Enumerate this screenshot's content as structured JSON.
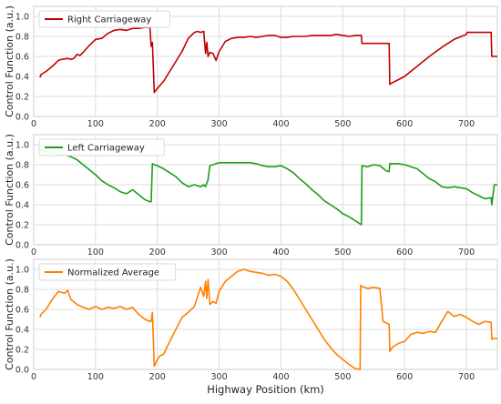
{
  "chart_data": {
    "type": "line",
    "xlabel": "Highway Position (km)",
    "shared_x_ticks": [
      0,
      100,
      200,
      300,
      400,
      500,
      600,
      700
    ],
    "xlim": [
      0,
      750
    ],
    "grid": true,
    "legend_position": "top-left",
    "panels": [
      {
        "ylabel": "Control Function (a.u.)",
        "ylim": [
          0,
          1.1
        ],
        "yticks": [
          0.0,
          0.2,
          0.4,
          0.6,
          0.8,
          1.0
        ],
        "series": [
          {
            "name": "Right Carriageway",
            "color": "#c00000",
            "x": [
              10,
              12,
              20,
              30,
              40,
              45,
              55,
              60,
              65,
              70,
              75,
              80,
              90,
              100,
              110,
              120,
              130,
              140,
              150,
              160,
              170,
              180,
              188,
              190,
              192,
              195,
              200,
              210,
              220,
              230,
              240,
              250,
              260,
              265,
              270,
              275,
              278,
              280,
              282,
              285,
              290,
              295,
              300,
              310,
              320,
              330,
              340,
              350,
              360,
              370,
              380,
              390,
              400,
              410,
              420,
              430,
              440,
              450,
              460,
              470,
              480,
              490,
              500,
              510,
              520,
              530,
              531,
              560,
              575,
              576,
              578,
              600,
              620,
              640,
              660,
              680,
              700,
              701,
              730,
              740,
              741,
              750
            ],
            "y": [
              0.39,
              0.42,
              0.45,
              0.5,
              0.56,
              0.57,
              0.58,
              0.57,
              0.58,
              0.62,
              0.61,
              0.64,
              0.71,
              0.77,
              0.78,
              0.83,
              0.86,
              0.87,
              0.86,
              0.88,
              0.88,
              0.89,
              0.89,
              0.7,
              0.74,
              0.24,
              0.28,
              0.35,
              0.45,
              0.55,
              0.65,
              0.78,
              0.84,
              0.85,
              0.84,
              0.85,
              0.63,
              0.74,
              0.6,
              0.64,
              0.63,
              0.56,
              0.65,
              0.75,
              0.78,
              0.79,
              0.79,
              0.8,
              0.79,
              0.8,
              0.81,
              0.81,
              0.79,
              0.79,
              0.8,
              0.8,
              0.8,
              0.81,
              0.81,
              0.81,
              0.81,
              0.82,
              0.81,
              0.8,
              0.81,
              0.81,
              0.73,
              0.73,
              0.73,
              0.32,
              0.33,
              0.4,
              0.5,
              0.6,
              0.69,
              0.77,
              0.82,
              0.84,
              0.84,
              0.84,
              0.6,
              0.6
            ]
          }
        ]
      },
      {
        "ylabel": "Control Function (a.u.)",
        "ylim": [
          0,
          1.1
        ],
        "yticks": [
          0.0,
          0.2,
          0.4,
          0.6,
          0.8,
          1.0
        ],
        "series": [
          {
            "name": "Left Carriageway",
            "color": "#1a9e1a",
            "x": [
              10,
              20,
              30,
              40,
              50,
              60,
              70,
              80,
              90,
              100,
              110,
              120,
              130,
              140,
              150,
              160,
              170,
              180,
              188,
              190,
              192,
              195,
              200,
              210,
              220,
              230,
              240,
              250,
              260,
              270,
              275,
              278,
              282,
              285,
              290,
              300,
              310,
              320,
              330,
              340,
              350,
              360,
              370,
              380,
              390,
              400,
              410,
              420,
              430,
              440,
              450,
              460,
              470,
              480,
              490,
              500,
              510,
              520,
              530,
              531,
              540,
              550,
              560,
              570,
              575,
              576,
              590,
              600,
              610,
              620,
              630,
              640,
              650,
              660,
              670,
              680,
              690,
              700,
              710,
              720,
              730,
              740,
              741,
              745,
              750
            ],
            "y": [
              0.95,
              0.93,
              0.92,
              0.9,
              0.9,
              0.88,
              0.85,
              0.8,
              0.75,
              0.7,
              0.64,
              0.6,
              0.57,
              0.53,
              0.51,
              0.55,
              0.5,
              0.45,
              0.43,
              0.43,
              0.81,
              0.8,
              0.79,
              0.76,
              0.72,
              0.68,
              0.62,
              0.58,
              0.6,
              0.58,
              0.6,
              0.58,
              0.65,
              0.79,
              0.8,
              0.82,
              0.82,
              0.82,
              0.82,
              0.82,
              0.82,
              0.81,
              0.79,
              0.78,
              0.78,
              0.79,
              0.76,
              0.72,
              0.66,
              0.61,
              0.55,
              0.5,
              0.44,
              0.4,
              0.36,
              0.31,
              0.28,
              0.24,
              0.2,
              0.79,
              0.78,
              0.8,
              0.79,
              0.74,
              0.73,
              0.81,
              0.81,
              0.8,
              0.78,
              0.76,
              0.71,
              0.66,
              0.63,
              0.58,
              0.57,
              0.58,
              0.57,
              0.56,
              0.52,
              0.49,
              0.46,
              0.47,
              0.4,
              0.6,
              0.6
            ]
          }
        ]
      },
      {
        "ylabel": "Control Function (a.u.)",
        "ylim": [
          0,
          1.1
        ],
        "yticks": [
          0.0,
          0.2,
          0.4,
          0.6,
          0.8,
          1.0
        ],
        "series": [
          {
            "name": "Normalized Average",
            "color": "#ff8000",
            "x": [
              10,
              12,
              20,
              30,
              40,
              50,
              55,
              60,
              70,
              80,
              90,
              100,
              110,
              120,
              130,
              140,
              150,
              160,
              170,
              180,
              188,
              190,
              192,
              195,
              200,
              205,
              210,
              220,
              230,
              240,
              250,
              260,
              270,
              275,
              278,
              280,
              282,
              285,
              290,
              295,
              300,
              310,
              320,
              330,
              340,
              350,
              360,
              370,
              380,
              390,
              400,
              410,
              420,
              430,
              440,
              450,
              460,
              470,
              480,
              490,
              500,
              510,
              520,
              528,
              529,
              531,
              540,
              550,
              560,
              565,
              575,
              576,
              580,
              590,
              600,
              610,
              620,
              630,
              640,
              650,
              660,
              670,
              680,
              690,
              700,
              710,
              720,
              730,
              740,
              741,
              745,
              750
            ],
            "y": [
              0.52,
              0.55,
              0.6,
              0.7,
              0.78,
              0.76,
              0.79,
              0.7,
              0.65,
              0.62,
              0.6,
              0.63,
              0.6,
              0.62,
              0.61,
              0.63,
              0.6,
              0.62,
              0.55,
              0.5,
              0.48,
              0.48,
              0.57,
              0.03,
              0.1,
              0.14,
              0.15,
              0.28,
              0.4,
              0.52,
              0.57,
              0.63,
              0.82,
              0.73,
              0.88,
              0.71,
              0.9,
              0.65,
              0.68,
              0.66,
              0.78,
              0.88,
              0.93,
              0.98,
              1.0,
              0.98,
              0.97,
              0.96,
              0.94,
              0.95,
              0.93,
              0.88,
              0.8,
              0.7,
              0.6,
              0.5,
              0.4,
              0.3,
              0.22,
              0.15,
              0.1,
              0.05,
              0.01,
              0.0,
              0.84,
              0.83,
              0.81,
              0.82,
              0.81,
              0.48,
              0.45,
              0.18,
              0.22,
              0.26,
              0.28,
              0.35,
              0.37,
              0.36,
              0.38,
              0.37,
              0.48,
              0.58,
              0.53,
              0.55,
              0.52,
              0.48,
              0.45,
              0.48,
              0.47,
              0.3,
              0.31,
              0.31
            ]
          }
        ]
      }
    ]
  }
}
